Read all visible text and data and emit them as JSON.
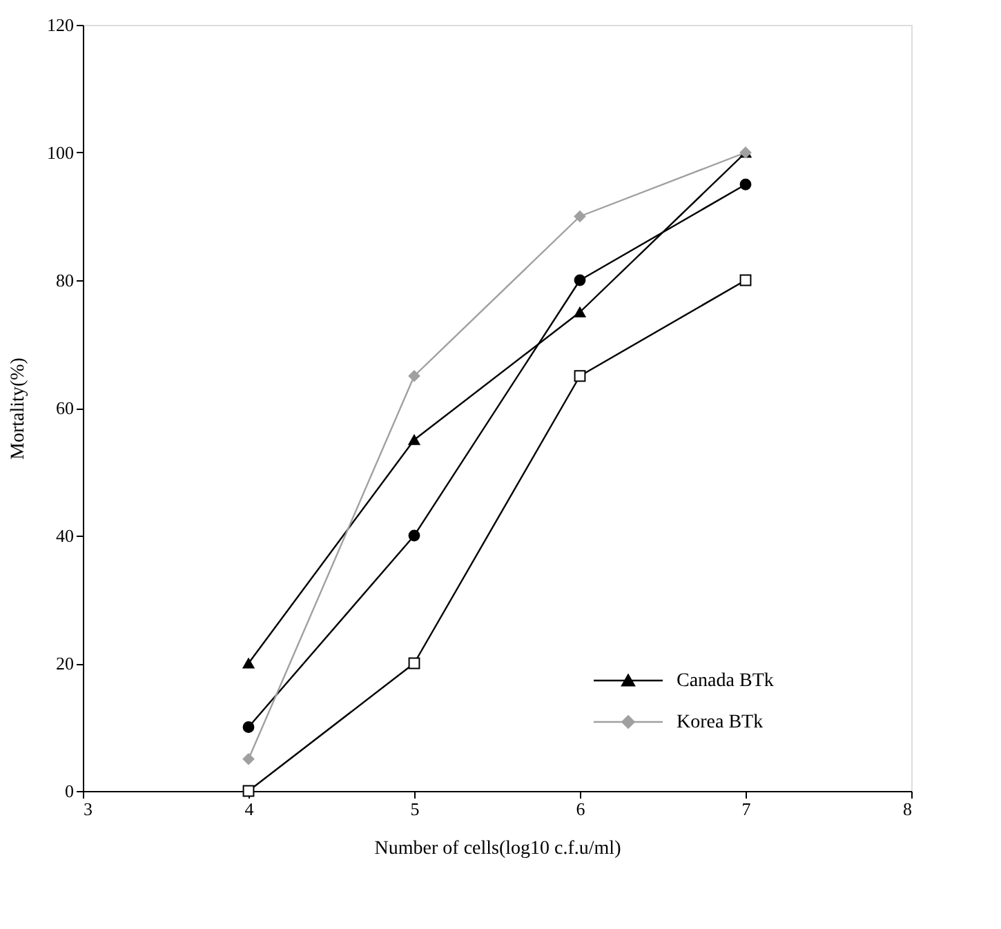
{
  "chart_data": {
    "type": "line",
    "xlabel": "Number of cells(log10 c.f.u/ml)",
    "ylabel": "Mortality(%)",
    "x": [
      4,
      5,
      6,
      7
    ],
    "xlim": [
      3,
      8
    ],
    "xticks": [
      3,
      4,
      5,
      6,
      7,
      8
    ],
    "ylim": [
      0,
      120
    ],
    "yticks": [
      0,
      20,
      40,
      60,
      80,
      100,
      120
    ],
    "grid": false,
    "legend": "bottom right",
    "line_style": "solid",
    "series": [
      {
        "color": "#000000",
        "marker": "circle",
        "values": [
          10,
          40,
          80,
          95
        ]
      },
      {
        "color": "#000000",
        "marker": "square",
        "values": [
          0,
          20,
          65,
          80
        ]
      },
      {
        "name": "Canada BTk",
        "color": "#000000",
        "marker": "triangle",
        "values": [
          20,
          55,
          75,
          100
        ]
      },
      {
        "name": "Korea BTk",
        "color": "#a0a0a0",
        "marker": "diamond",
        "values": [
          5,
          65,
          90,
          100
        ]
      }
    ]
  }
}
